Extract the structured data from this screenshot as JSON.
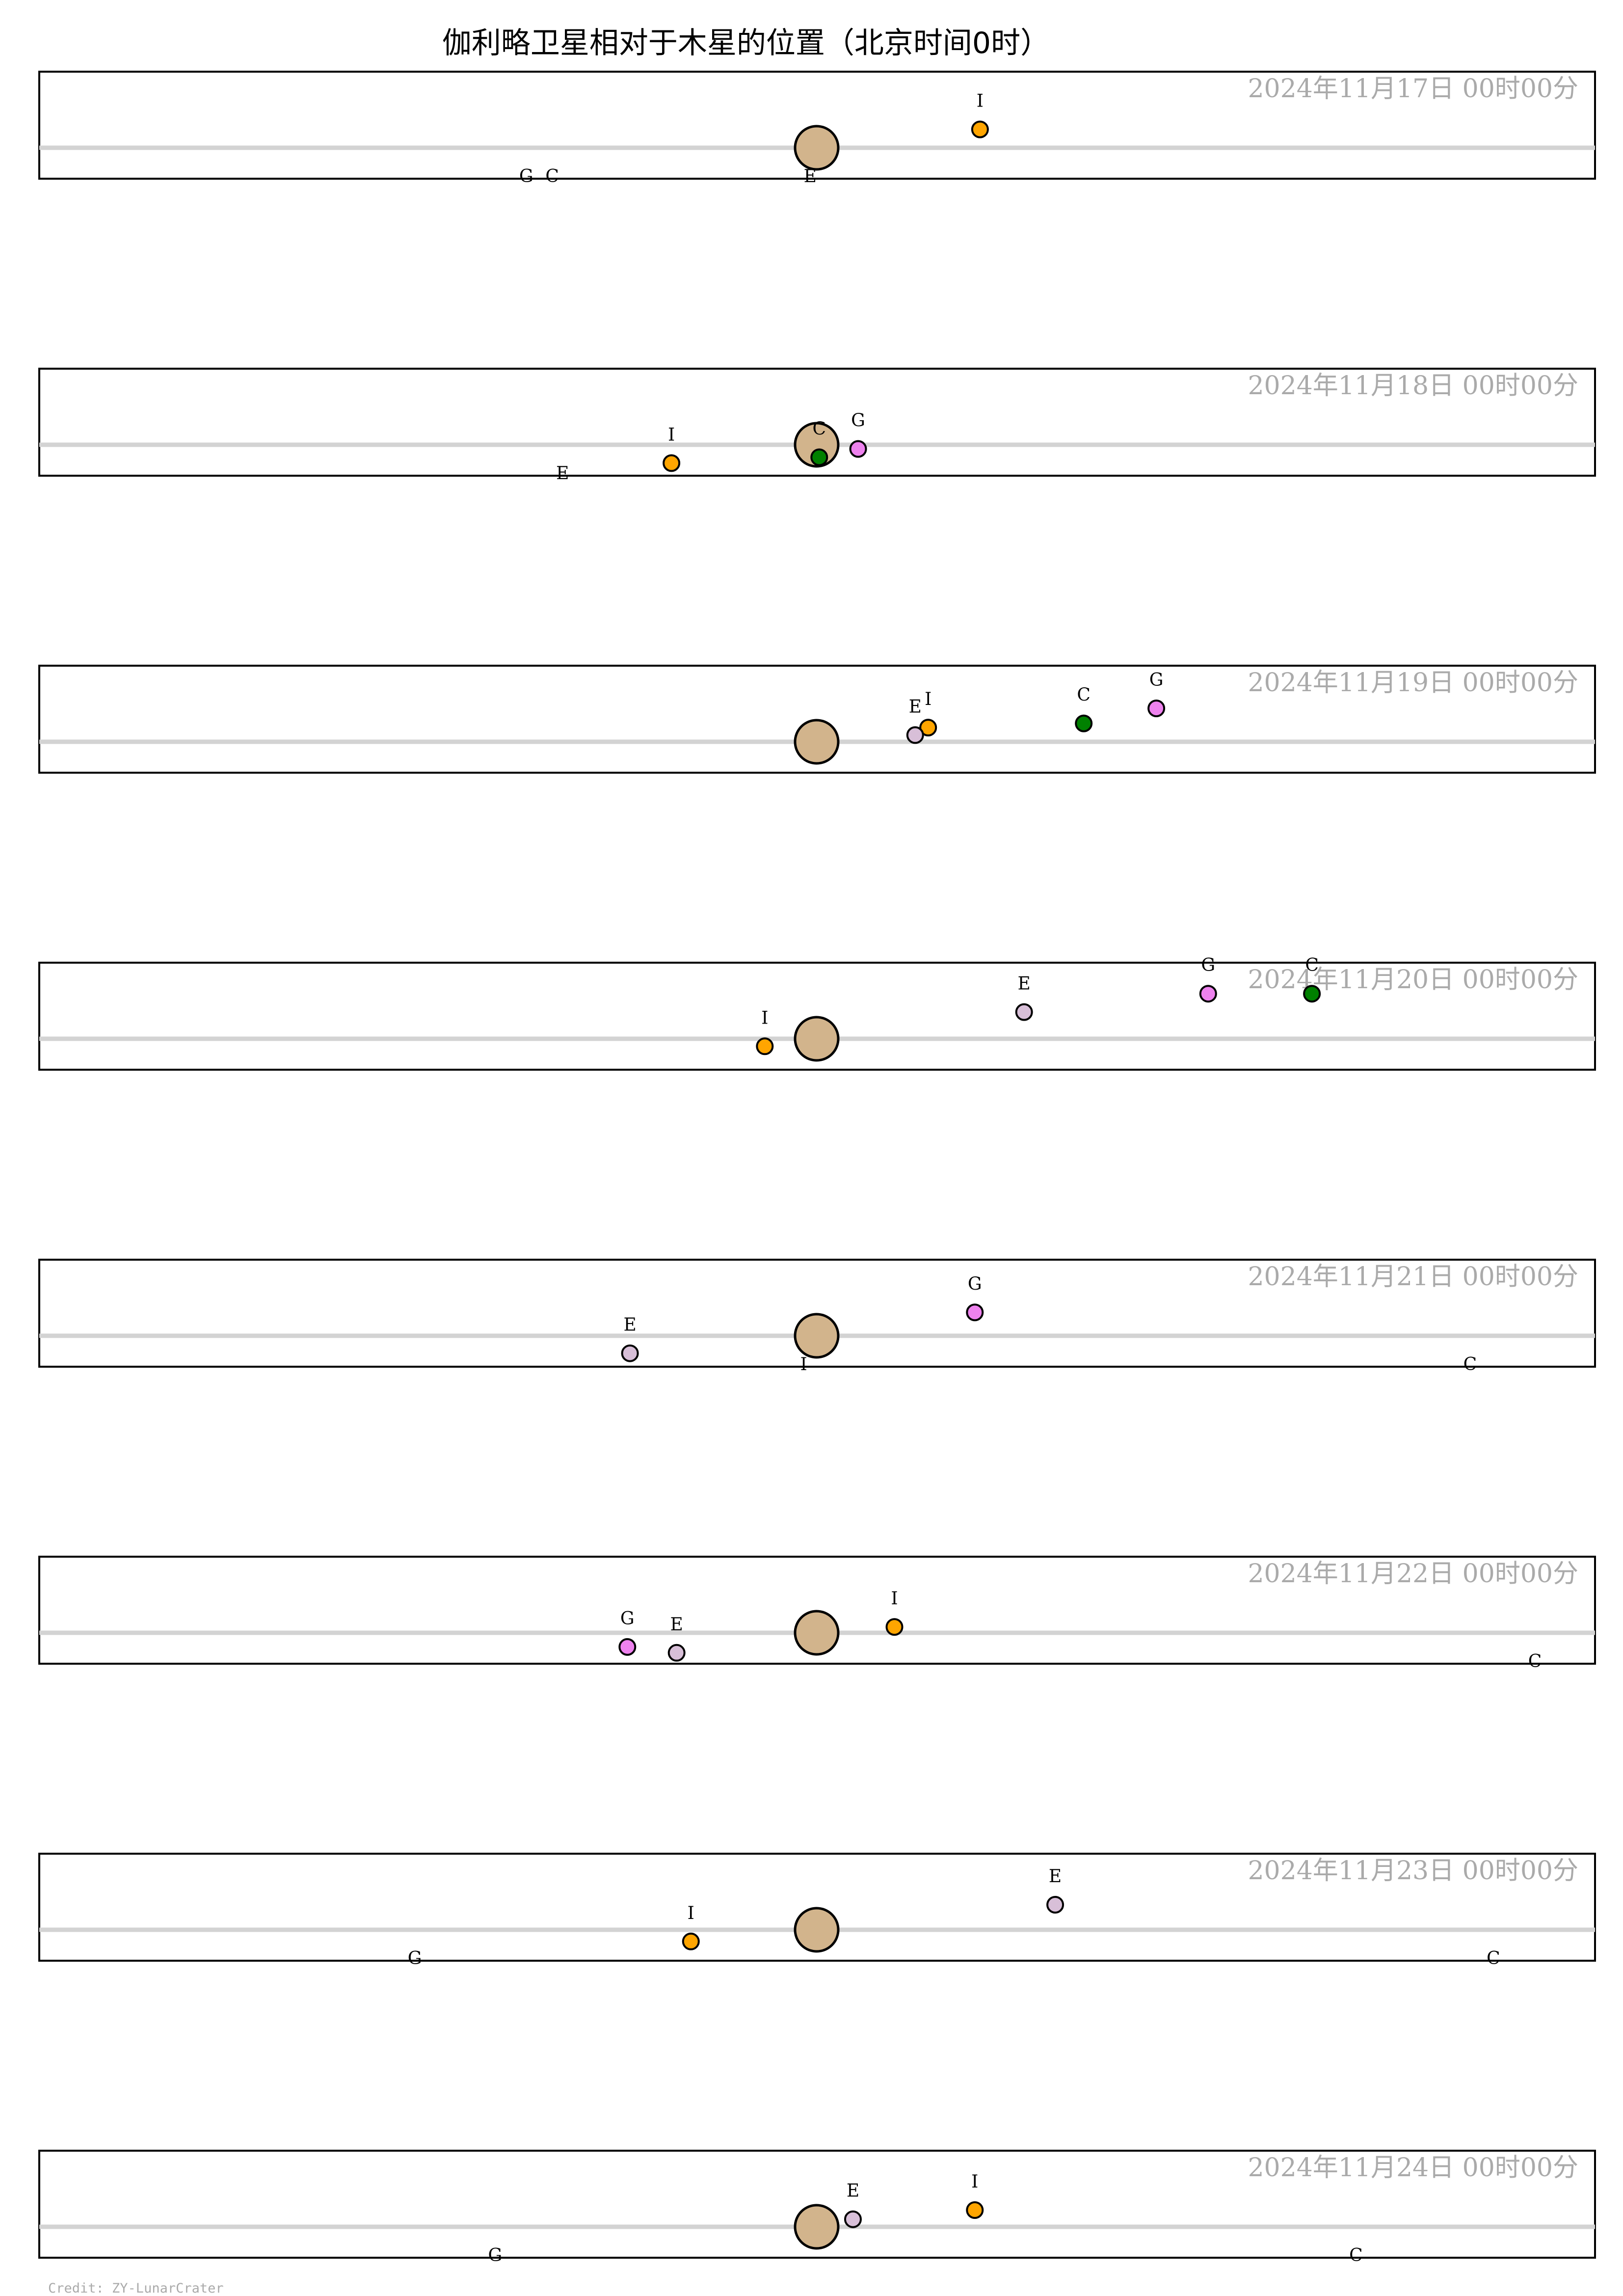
{
  "chart_data": {
    "type": "scatter",
    "title": "伽利略卫星相对于木星的位置（北京时间0时）",
    "credit": "Credit: ZY-LunarCrater",
    "x_unit": "Jupiter radii",
    "xlim": [
      -30,
      30
    ],
    "ylim": [
      -2,
      2
    ],
    "colors": {
      "jupiter": "#d2b48c",
      "I": "#ffa500",
      "E": "#d8bfd8",
      "G": "#ee82ee",
      "C": "#008000",
      "equator": "#d3d3d3",
      "frame": "#000000"
    },
    "panels": [
      {
        "date": "2024年11月17日  00时00分",
        "moons": [
          {
            "id": "I",
            "x": 6.3,
            "y": 1.1,
            "visible": true
          },
          {
            "id": "E",
            "x": -0.25,
            "y": 0,
            "visible": false
          },
          {
            "id": "G",
            "x": -11.2,
            "y": 0,
            "visible": false
          },
          {
            "id": "C",
            "x": -10.2,
            "y": 0,
            "visible": false
          }
        ]
      },
      {
        "date": "2024年11月18日  00时00分",
        "moons": [
          {
            "id": "I",
            "x": -5.6,
            "y": -1.1,
            "visible": true
          },
          {
            "id": "E",
            "x": -9.8,
            "y": 0,
            "visible": false
          },
          {
            "id": "G",
            "x": 1.6,
            "y": -0.25,
            "visible": true
          },
          {
            "id": "C",
            "x": 0.1,
            "y": -0.75,
            "visible": true
          }
        ]
      },
      {
        "date": "2024年11月19日  00时00分",
        "moons": [
          {
            "id": "I",
            "x": 4.3,
            "y": 0.85,
            "visible": true
          },
          {
            "id": "E",
            "x": 3.8,
            "y": 0.4,
            "visible": true
          },
          {
            "id": "G",
            "x": 13.1,
            "y": 2.0,
            "visible": true
          },
          {
            "id": "C",
            "x": 10.3,
            "y": 1.1,
            "visible": true
          }
        ]
      },
      {
        "date": "2024年11月20日  00时00分",
        "moons": [
          {
            "id": "I",
            "x": -2.0,
            "y": -0.45,
            "visible": true
          },
          {
            "id": "E",
            "x": 8.0,
            "y": 1.6,
            "visible": true
          },
          {
            "id": "G",
            "x": 15.1,
            "y": 2.7,
            "visible": true
          },
          {
            "id": "C",
            "x": 19.1,
            "y": 2.7,
            "visible": true
          }
        ]
      },
      {
        "date": "2024年11月21日  00时00分",
        "moons": [
          {
            "id": "I",
            "x": -0.5,
            "y": 0,
            "visible": false
          },
          {
            "id": "E",
            "x": -7.2,
            "y": -1.05,
            "visible": true
          },
          {
            "id": "G",
            "x": 6.1,
            "y": 1.4,
            "visible": true
          },
          {
            "id": "C",
            "x": 25.2,
            "y": 0,
            "visible": false
          }
        ]
      },
      {
        "date": "2024年11月22日  00时00分",
        "moons": [
          {
            "id": "I",
            "x": 3.0,
            "y": 0.35,
            "visible": true
          },
          {
            "id": "E",
            "x": -5.4,
            "y": -1.2,
            "visible": true
          },
          {
            "id": "G",
            "x": -7.3,
            "y": -0.85,
            "visible": true
          },
          {
            "id": "C",
            "x": 27.7,
            "y": 0,
            "visible": false
          }
        ]
      },
      {
        "date": "2024年11月23日  00时00分",
        "moons": [
          {
            "id": "I",
            "x": -4.85,
            "y": -0.7,
            "visible": true
          },
          {
            "id": "E",
            "x": 9.2,
            "y": 1.5,
            "visible": true
          },
          {
            "id": "G",
            "x": -15.5,
            "y": 0,
            "visible": false
          },
          {
            "id": "C",
            "x": 26.1,
            "y": 0,
            "visible": false
          }
        ]
      },
      {
        "date": "2024年11月24日  00时00分",
        "moons": [
          {
            "id": "I",
            "x": 6.1,
            "y": 1.0,
            "visible": true
          },
          {
            "id": "E",
            "x": 1.4,
            "y": 0.45,
            "visible": true
          },
          {
            "id": "G",
            "x": -12.4,
            "y": 0,
            "visible": false
          },
          {
            "id": "C",
            "x": 20.8,
            "y": 0,
            "visible": false
          }
        ]
      }
    ]
  }
}
